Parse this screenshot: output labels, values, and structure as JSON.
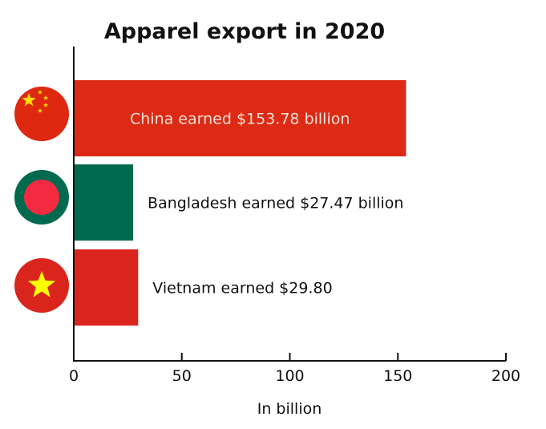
{
  "chart_data": {
    "type": "bar",
    "orientation": "horizontal",
    "title": "Apparel export in 2020",
    "xlabel": "In billion",
    "xlim": [
      0,
      200
    ],
    "xticks": [
      0,
      50,
      100,
      150,
      200
    ],
    "grid": false,
    "categories": [
      "China",
      "Bangladesh",
      "Vietnam"
    ],
    "values": [
      153.78,
      27.47,
      29.8
    ],
    "bar_labels": [
      "China earned $153.78 billion",
      "Bangladesh earned $27.47 billion",
      "Vietnam earned $29.80"
    ],
    "bar_colors": [
      "#dc2a14",
      "#006a4e",
      "#da251d"
    ],
    "label_colors": [
      "#f7e0d6",
      "#111111",
      "#111111"
    ],
    "label_inside": [
      true,
      false,
      false
    ],
    "flag_icons": [
      "china-flag-icon",
      "bangladesh-flag-icon",
      "vietnam-flag-icon"
    ]
  }
}
